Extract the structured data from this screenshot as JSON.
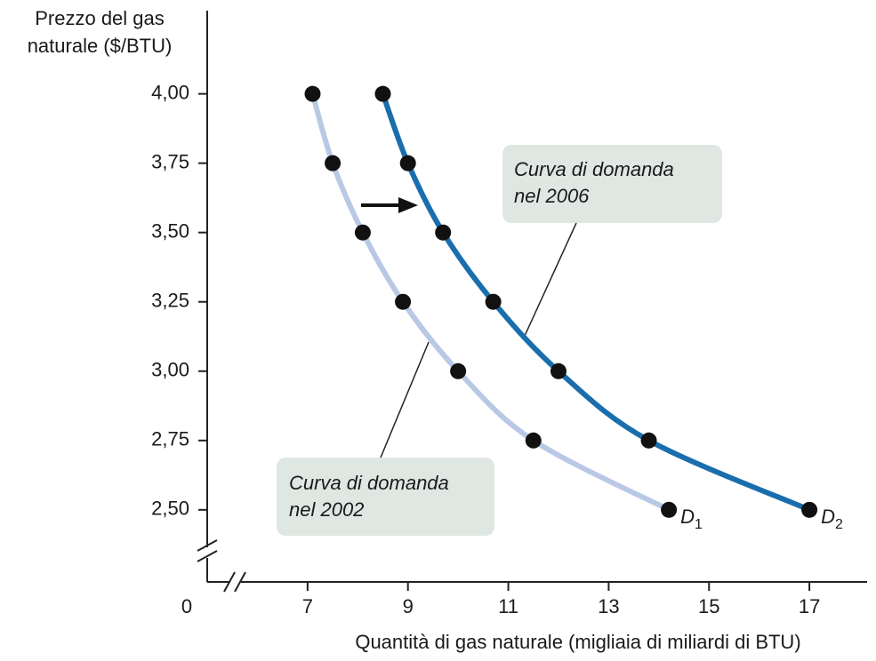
{
  "chart_data": {
    "type": "line",
    "y_axis_title": [
      "Prezzo del gas",
      "naturale ($/BTU)"
    ],
    "x_axis_title": "Quantità di gas naturale (migliaia di miliardi di BTU)",
    "origin_label": "0",
    "xlim": [
      5,
      18.15
    ],
    "ylim": [
      2.24,
      4.3
    ],
    "xticks": [
      7,
      9,
      11,
      13,
      15,
      17
    ],
    "yticks": [
      {
        "value": 4,
        "label": "4,00"
      },
      {
        "value": 3.75,
        "label": "3,75"
      },
      {
        "value": 3.5,
        "label": "3,50"
      },
      {
        "value": 3.25,
        "label": "3,25"
      },
      {
        "value": 3,
        "label": "3,00"
      },
      {
        "value": 2.75,
        "label": "2,75"
      },
      {
        "value": 2.5,
        "label": "2,50"
      }
    ],
    "series": [
      {
        "name": "D",
        "subscript": "1",
        "color": "#b9c9e5",
        "x": [
          7.1,
          7.5,
          8.1,
          8.9,
          10.0,
          11.5,
          14.2
        ],
        "values": [
          4,
          3.75,
          3.5,
          3.25,
          3,
          2.75,
          2.5
        ]
      },
      {
        "name": "D",
        "subscript": "2",
        "color": "#1a6ead",
        "x": [
          8.5,
          9.0,
          9.7,
          10.7,
          12.0,
          13.8,
          17.0
        ],
        "values": [
          4,
          3.75,
          3.5,
          3.25,
          3,
          2.75,
          2.5
        ]
      }
    ],
    "annotations": [
      [
        "Curva di domanda",
        "nel 2006"
      ],
      [
        "Curva di domanda",
        "nel 2002"
      ]
    ]
  }
}
